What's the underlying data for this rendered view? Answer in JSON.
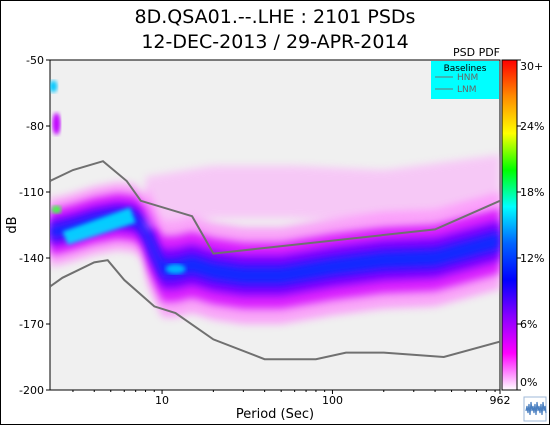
{
  "chart_data": {
    "type": "heatmap",
    "title_line1": "8D.QSA01.--.LHE : 2101 PSDs",
    "title_line2": "12-DEC-2013 / 29-APR-2014",
    "xlabel": "Period (Sec)",
    "ylabel": "dB",
    "x_scale": "log",
    "xlim": [
      2.2,
      962
    ],
    "ylim": [
      -200,
      -50
    ],
    "x_ticks": [
      {
        "v": 10,
        "label": "10"
      },
      {
        "v": 100,
        "label": "100"
      },
      {
        "v": 962,
        "label": "962"
      }
    ],
    "y_ticks": [
      -50,
      -80,
      -110,
      -140,
      -170,
      -200
    ],
    "colorbar": {
      "title": "PSD PDF",
      "ticks": [
        "30+",
        "24%",
        "18%",
        "12%",
        "6%",
        "0%"
      ],
      "stops": [
        "#ff0000",
        "#ff8c00",
        "#ffff00",
        "#00ff00",
        "#00ffff",
        "#0064ff",
        "#0000ff",
        "#8a00ff",
        "#ff00ff",
        "#ffffff"
      ]
    },
    "legend": {
      "title": "Baselines",
      "entries": [
        "HNM",
        "LNM"
      ],
      "placement": "top-right",
      "background": "#00ffff"
    },
    "baselines": {
      "HNM": {
        "periods": [
          2.2,
          3.0,
          4.5,
          6.2,
          7.5,
          15,
          20,
          400,
          962
        ],
        "db": [
          -105,
          -100,
          -96,
          -105,
          -114,
          -121,
          -138,
          -127,
          -114
        ]
      },
      "LNM": {
        "periods": [
          2.2,
          2.6,
          4.0,
          4.8,
          6.0,
          9.0,
          12,
          20,
          40,
          80,
          120,
          200,
          450,
          962
        ],
        "db": [
          -153,
          -149,
          -142,
          -141,
          -150,
          -162,
          -165,
          -177,
          -186,
          -186,
          -183,
          -183,
          -185,
          -178
        ]
      }
    },
    "pdf_mode_db": {
      "periods": [
        2.4,
        3.0,
        4.0,
        5.5,
        7.0,
        8.0,
        10,
        12,
        15,
        20,
        30,
        50,
        100,
        200,
        400,
        962
      ],
      "db": [
        -128,
        -126,
        -123,
        -121,
        -122,
        -128,
        -145,
        -145,
        -143,
        -146,
        -148,
        -148,
        -144,
        -141,
        -140,
        -132
      ]
    }
  }
}
